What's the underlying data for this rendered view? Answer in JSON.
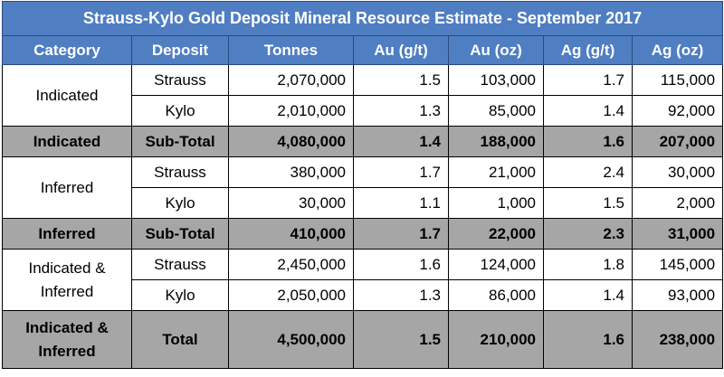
{
  "title": "Strauss-Kylo Gold Deposit Mineral Resource Estimate - September 2017",
  "headers": [
    "Category",
    "Deposit",
    "Tonnes",
    "Au (g/t)",
    "Au (oz)",
    "Ag (g/t)",
    "Ag (oz)"
  ],
  "groups": [
    {
      "category": "Indicated",
      "rows": [
        [
          "Strauss",
          "2,070,000",
          "1.5",
          "103,000",
          "1.7",
          "115,000"
        ],
        [
          "Kylo",
          "2,010,000",
          "1.3",
          "85,000",
          "1.4",
          "92,000"
        ]
      ],
      "subtotal": [
        "Indicated",
        "Sub-Total",
        "4,080,000",
        "1.4",
        "188,000",
        "1.6",
        "207,000"
      ]
    },
    {
      "category": "Inferred",
      "rows": [
        [
          "Strauss",
          "380,000",
          "1.7",
          "21,000",
          "2.4",
          "30,000"
        ],
        [
          "Kylo",
          "30,000",
          "1.1",
          "1,000",
          "1.5",
          "2,000"
        ]
      ],
      "subtotal": [
        "Inferred",
        "Sub-Total",
        "410,000",
        "1.7",
        "22,000",
        "2.3",
        "31,000"
      ]
    },
    {
      "category": "Indicated & Inferred",
      "rows": [
        [
          "Strauss",
          "2,450,000",
          "1.6",
          "124,000",
          "1.8",
          "145,000"
        ],
        [
          "Kylo",
          "2,050,000",
          "1.3",
          "86,000",
          "1.4",
          "93,000"
        ]
      ],
      "subtotal": [
        "Indicated & Inferred",
        "Total",
        "4,500,000",
        "1.5",
        "210,000",
        "1.6",
        "238,000"
      ]
    }
  ],
  "colors": {
    "header_blue": "#4f7ec2",
    "subtotal_gray": "#a6a6a6"
  }
}
